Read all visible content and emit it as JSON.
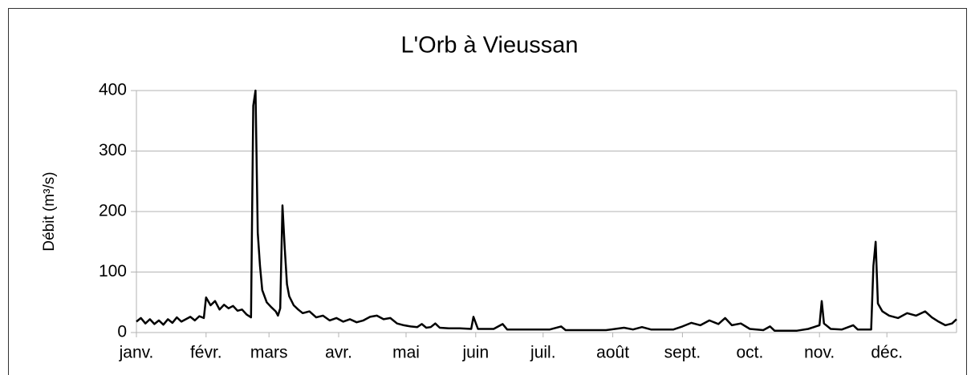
{
  "chart_data": {
    "type": "line",
    "title": "L'Orb à Vieussan",
    "y_label": "Débit (m³/s)",
    "x": [
      1,
      3,
      5,
      7,
      9,
      11,
      13,
      15,
      17,
      19,
      21,
      23,
      25,
      27,
      29,
      31,
      32,
      34,
      36,
      38,
      40,
      42,
      44,
      46,
      48,
      50,
      52,
      53,
      54,
      55,
      56,
      57,
      59,
      61,
      63,
      64,
      65,
      66,
      67,
      68,
      69,
      71,
      73,
      75,
      78,
      81,
      84,
      87,
      90,
      93,
      96,
      99,
      102,
      105,
      108,
      111,
      114,
      117,
      120,
      123,
      126,
      128,
      130,
      132,
      134,
      136,
      140,
      145,
      150,
      151,
      153,
      160,
      164,
      166,
      175,
      185,
      190,
      192,
      200,
      210,
      218,
      222,
      226,
      230,
      240,
      244,
      248,
      252,
      256,
      260,
      263,
      266,
      270,
      274,
      280,
      283,
      285,
      295,
      300,
      305,
      306,
      307,
      310,
      315,
      320,
      322,
      326,
      328,
      329,
      330,
      331,
      333,
      336,
      340,
      344,
      348,
      352,
      355,
      358,
      361,
      364,
      366
    ],
    "series": [
      {
        "name": "Débit",
        "color": "#000000",
        "values": [
          18,
          24,
          15,
          22,
          14,
          20,
          13,
          22,
          16,
          25,
          18,
          22,
          26,
          20,
          27,
          24,
          58,
          45,
          52,
          38,
          46,
          40,
          44,
          36,
          38,
          30,
          25,
          375,
          400,
          165,
          110,
          70,
          50,
          42,
          35,
          28,
          40,
          210,
          140,
          80,
          60,
          45,
          38,
          32,
          35,
          25,
          28,
          20,
          24,
          18,
          22,
          17,
          20,
          26,
          28,
          22,
          24,
          15,
          12,
          10,
          9,
          14,
          8,
          9,
          15,
          8,
          7,
          7,
          6,
          26,
          6,
          6,
          14,
          5,
          5,
          5,
          10,
          4,
          4,
          4,
          8,
          5,
          9,
          5,
          5,
          10,
          16,
          12,
          20,
          14,
          24,
          12,
          15,
          6,
          4,
          10,
          3,
          3,
          6,
          12,
          52,
          15,
          6,
          5,
          12,
          5,
          5,
          5,
          110,
          150,
          48,
          35,
          28,
          24,
          32,
          28,
          35,
          25,
          18,
          12,
          15,
          22
        ]
      }
    ],
    "xlim": [
      1,
      366
    ],
    "xticks": [
      {
        "value": 1,
        "label": "janv."
      },
      {
        "value": 32,
        "label": "févr."
      },
      {
        "value": 60,
        "label": "mars"
      },
      {
        "value": 91,
        "label": "avr."
      },
      {
        "value": 121,
        "label": "mai"
      },
      {
        "value": 152,
        "label": "juin"
      },
      {
        "value": 182,
        "label": "juil."
      },
      {
        "value": 213,
        "label": "août"
      },
      {
        "value": 244,
        "label": "sept."
      },
      {
        "value": 274,
        "label": "oct."
      },
      {
        "value": 305,
        "label": "nov."
      },
      {
        "value": 335,
        "label": "déc."
      }
    ],
    "ylim": [
      0,
      400
    ],
    "yticks": [
      0,
      100,
      200,
      300,
      400
    ],
    "grid": true
  }
}
